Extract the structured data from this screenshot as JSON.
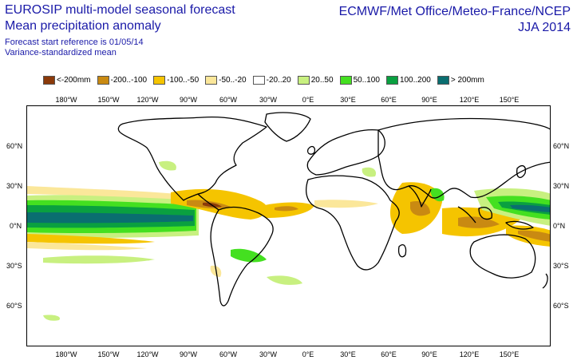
{
  "header": {
    "title_line1": "EUROSIP multi-model seasonal forecast",
    "title_line2": "Mean precipitation anomaly",
    "subtitle_line1": "Forecast start reference is 01/05/14",
    "subtitle_line2": "Variance-standardized mean",
    "source": "ECMWF/Met Office/Meteo-France/NCEP",
    "season": "JJA 2014"
  },
  "legend": [
    {
      "label": "<-200mm",
      "color": "#8b3a0a"
    },
    {
      "label": "-200..-100",
      "color": "#c98a12"
    },
    {
      "label": "-100..-50",
      "color": "#f5c400"
    },
    {
      "label": "-50..-20",
      "color": "#fbe79a"
    },
    {
      "label": "-20..20",
      "color": "#ffffff"
    },
    {
      "label": "20..50",
      "color": "#c8f080"
    },
    {
      "label": "50..100",
      "color": "#44e020"
    },
    {
      "label": "100..200",
      "color": "#0aa040"
    },
    {
      "label": "> 200mm",
      "color": "#0a6e70"
    }
  ],
  "axes": {
    "lon_top": [
      "180°W",
      "150°W",
      "120°W",
      "90°W",
      "60°W",
      "30°W",
      "0°E",
      "30°E",
      "60°E",
      "90°E",
      "120°E",
      "150°E"
    ],
    "lon_bottom": [
      "180°W",
      "150°W",
      "120°W",
      "90°W",
      "60°W",
      "30°W",
      "0°E",
      "30°E",
      "60°E",
      "90°E",
      "120°E",
      "150°E"
    ],
    "lat_left": [
      "60°N",
      "30°N",
      "0°N",
      "30°S",
      "60°S"
    ],
    "lat_right": [
      "60°N",
      "30°N",
      "0°N",
      "30°S",
      "60°S"
    ]
  }
}
